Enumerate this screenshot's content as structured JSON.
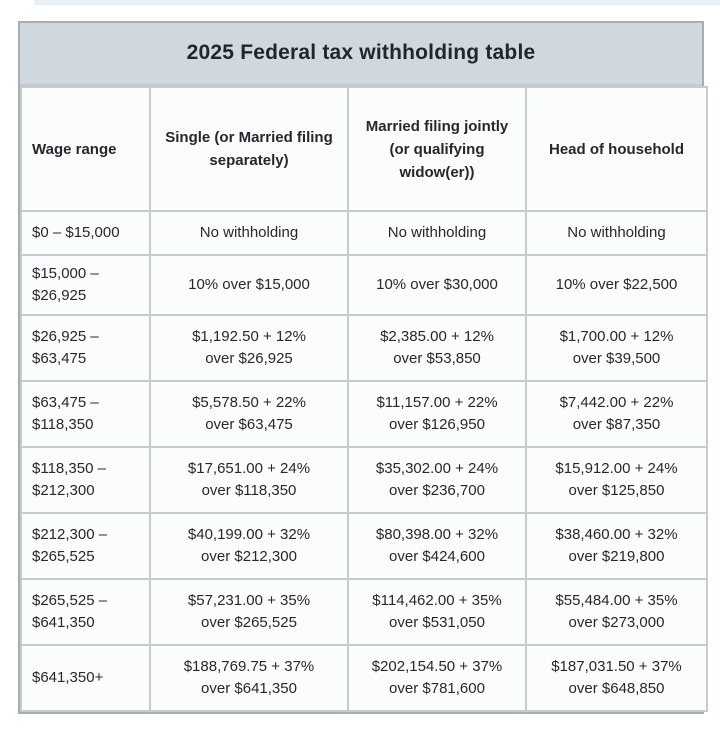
{
  "title": "2025 Federal tax withholding table",
  "colors": {
    "title_bg": "#cfd8de",
    "cell_bg": "#fbfcfc",
    "inner_border": "#c6cdd1",
    "outer_border": "#a5aeb3",
    "text": "#25282c"
  },
  "table": {
    "headers": [
      "Wage range",
      "Single (or Married filing separately)",
      "Married filing jointly (or qualifying widow(er))",
      "Head of household"
    ],
    "rows": [
      {
        "wage": {
          "a": "$0 – $15,000",
          "b": ""
        },
        "single": {
          "a": "No withholding",
          "b": ""
        },
        "joint": {
          "a": "No withholding",
          "b": ""
        },
        "head": {
          "a": "No withholding",
          "b": ""
        }
      },
      {
        "wage": {
          "a": "$15,000 –",
          "b": "$26,925"
        },
        "single": {
          "a": "10% over $15,000",
          "b": ""
        },
        "joint": {
          "a": "10% over $30,000",
          "b": ""
        },
        "head": {
          "a": "10% over $22,500",
          "b": ""
        }
      },
      {
        "wage": {
          "a": "$26,925 –",
          "b": "$63,475"
        },
        "single": {
          "a": "$1,192.50 + 12%",
          "b": "over $26,925"
        },
        "joint": {
          "a": "$2,385.00 + 12%",
          "b": "over $53,850"
        },
        "head": {
          "a": "$1,700.00 + 12%",
          "b": "over $39,500"
        }
      },
      {
        "wage": {
          "a": "$63,475 –",
          "b": "$118,350"
        },
        "single": {
          "a": "$5,578.50 + 22%",
          "b": "over $63,475"
        },
        "joint": {
          "a": "$11,157.00 + 22%",
          "b": "over $126,950"
        },
        "head": {
          "a": "$7,442.00 + 22%",
          "b": "over $87,350"
        }
      },
      {
        "wage": {
          "a": "$118,350 –",
          "b": "$212,300"
        },
        "single": {
          "a": "$17,651.00 + 24%",
          "b": "over $118,350"
        },
        "joint": {
          "a": "$35,302.00 + 24%",
          "b": "over $236,700"
        },
        "head": {
          "a": "$15,912.00 + 24%",
          "b": "over $125,850"
        }
      },
      {
        "wage": {
          "a": "$212,300 –",
          "b": "$265,525"
        },
        "single": {
          "a": "$40,199.00 + 32%",
          "b": "over $212,300"
        },
        "joint": {
          "a": "$80,398.00 + 32%",
          "b": "over $424,600"
        },
        "head": {
          "a": "$38,460.00 + 32%",
          "b": "over $219,800"
        }
      },
      {
        "wage": {
          "a": "$265,525 –",
          "b": "$641,350"
        },
        "single": {
          "a": "$57,231.00 + 35%",
          "b": "over $265,525"
        },
        "joint": {
          "a": "$114,462.00 + 35%",
          "b": "over $531,050"
        },
        "head": {
          "a": "$55,484.00 + 35%",
          "b": "over $273,000"
        }
      },
      {
        "wage": {
          "a": "$641,350+",
          "b": ""
        },
        "single": {
          "a": "$188,769.75 + 37%",
          "b": "over $641,350"
        },
        "joint": {
          "a": "$202,154.50 + 37%",
          "b": "over $781,600"
        },
        "head": {
          "a": "$187,031.50 + 37%",
          "b": "over $648,850"
        }
      }
    ]
  },
  "chart_data": {
    "type": "table",
    "title": "2025 Federal tax withholding table",
    "columns": [
      "Wage range",
      "Single (or Married filing separately)",
      "Married filing jointly (or qualifying widow(er))",
      "Head of household"
    ],
    "rows": [
      [
        "$0 – $15,000",
        "No withholding",
        "No withholding",
        "No withholding"
      ],
      [
        "$15,000 – $26,925",
        "10% over $15,000",
        "10% over $30,000",
        "10% over $22,500"
      ],
      [
        "$26,925 – $63,475",
        "$1,192.50 + 12% over $26,925",
        "$2,385.00 + 12% over $53,850",
        "$1,700.00 + 12% over $39,500"
      ],
      [
        "$63,475 – $118,350",
        "$5,578.50 + 22% over $63,475",
        "$11,157.00 + 22% over $126,950",
        "$7,442.00 + 22% over $87,350"
      ],
      [
        "$118,350 – $212,300",
        "$17,651.00 + 24% over $118,350",
        "$35,302.00 + 24% over $236,700",
        "$15,912.00 + 24% over $125,850"
      ],
      [
        "$212,300 – $265,525",
        "$40,199.00 + 32% over $212,300",
        "$80,398.00 + 32% over $424,600",
        "$38,460.00 + 32% over $219,800"
      ],
      [
        "$265,525 – $641,350",
        "$57,231.00 + 35% over $265,525",
        "$114,462.00 + 35% over $531,050",
        "$55,484.00 + 35% over $273,000"
      ],
      [
        "$641,350+",
        "$188,769.75 + 37% over $641,350",
        "$202,154.50 + 37% over $781,600",
        "$187,031.50 + 37% over $648,850"
      ]
    ]
  }
}
